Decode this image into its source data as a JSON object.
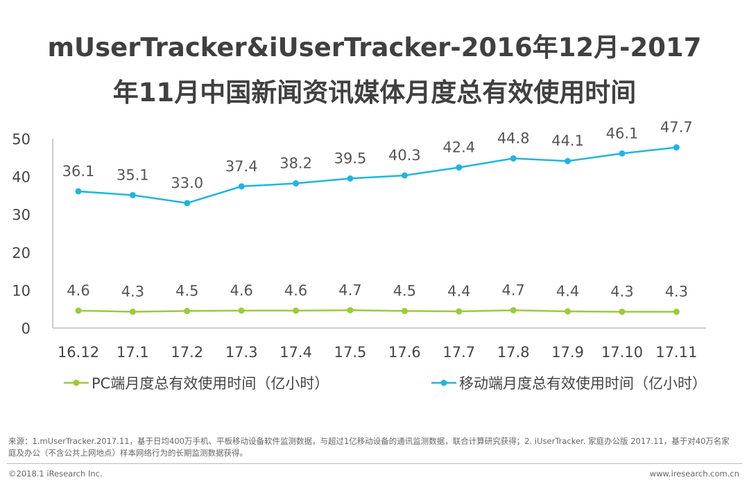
{
  "title_line1": "mUserTracker&iUserTracker-2016年12月-2017",
  "title_line2": "年11月中国新闻资讯媒体月度总有效使用时间",
  "source_text": "来源：1.mUserTracker.2017.11，基于日均400万手机、平板移动设备软件监测数据，与超过1亿移动设备的通讯监测数据，联合计算研究获得；2. iUserTracker. 家庭办公版 2017.11，基于对40万名家庭及办公（不含公共上网地点）样本网络行为的长期监测数据获得。",
  "footer_left": "©2018.1 iResearch Inc.",
  "footer_right": "www.iresearch.com.cn",
  "chart_data": {
    "type": "line",
    "title": "mUserTracker&iUserTracker-2016年12月-2017年11月中国新闻资讯媒体月度总有效使用时间",
    "categories": [
      "16.12",
      "17.1",
      "17.2",
      "17.3",
      "17.4",
      "17.5",
      "17.6",
      "17.7",
      "17.8",
      "17.9",
      "17.10",
      "17.11"
    ],
    "yticks": [
      "0",
      "10",
      "20",
      "30",
      "40",
      "50"
    ],
    "ylim": [
      0,
      50
    ],
    "grid": false,
    "legend_position": "bottom",
    "series": [
      {
        "name": "PC端月度总有效使用时间（亿小时）",
        "color": "#9ACD32",
        "values": [
          4.6,
          4.3,
          4.5,
          4.6,
          4.6,
          4.7,
          4.5,
          4.4,
          4.7,
          4.4,
          4.3,
          4.3
        ],
        "labels": [
          "4.6",
          "4.3",
          "4.5",
          "4.6",
          "4.6",
          "4.7",
          "4.5",
          "4.4",
          "4.7",
          "4.4",
          "4.3",
          "4.3"
        ]
      },
      {
        "name": "移动端月度总有效使用时间（亿小时）",
        "color": "#1FB4E6",
        "values": [
          36.1,
          35.1,
          33.0,
          37.4,
          38.2,
          39.5,
          40.3,
          42.4,
          44.8,
          44.1,
          46.1,
          47.7
        ],
        "labels": [
          "36.1",
          "35.1",
          "33.0",
          "37.4",
          "38.2",
          "39.5",
          "40.3",
          "42.4",
          "44.8",
          "44.1",
          "46.1",
          "47.7"
        ]
      }
    ]
  }
}
